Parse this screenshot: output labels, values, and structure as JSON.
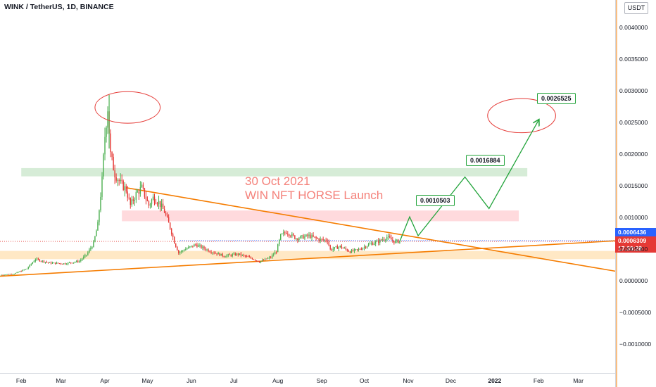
{
  "header": {
    "symbol_line": "WINK / TetherUS, 1D, BINANCE"
  },
  "currency_badge": "USDT",
  "annotation": {
    "line1": "30 Oct 2021",
    "line2": "WIN NFT HORSE Launch"
  },
  "targets": [
    "0.0010503",
    "0.0016884",
    "0.0026525"
  ],
  "price_labels": {
    "current_price": "0.0006436",
    "last_close": "0.0006309",
    "countdown": "17:30:28",
    "current_color": "#2962ff",
    "last_color": "#e53935"
  },
  "colors": {
    "up": "#26a69a",
    "down": "#ef5350",
    "up_bar": "#4caf50",
    "down_bar": "#e53935",
    "trendline": "#f57c00",
    "projection": "#21a33a",
    "resistance_zone": "#c8e6c9",
    "target_zone": "#ffcdd2",
    "support_zone": "#ffe0b2",
    "ellipse": "#e53935"
  },
  "chart_data": {
    "type": "candlestick",
    "title": "WINK / TetherUS, 1D, BINANCE",
    "x_ticks": [
      "Feb",
      "Mar",
      "Apr",
      "May",
      "Jun",
      "Jul",
      "Aug",
      "Sep",
      "Oct",
      "Nov",
      "Dec",
      "2022",
      "Feb",
      "Mar"
    ],
    "x_tick_dates": [
      "2021-02-01",
      "2021-03-01",
      "2021-04-01",
      "2021-05-01",
      "2021-06-01",
      "2021-07-01",
      "2021-08-01",
      "2021-09-01",
      "2021-10-01",
      "2021-11-01",
      "2021-12-01",
      "2022-01-01",
      "2022-02-01",
      "2022-03-01"
    ],
    "y_ticks": [
      "0.0040000",
      "0.0035000",
      "0.0030000",
      "0.0025000",
      "0.0020000",
      "0.0015000",
      "0.0010000",
      "0.0005000",
      "0.0000000",
      "−0.0005000",
      "−0.0010000"
    ],
    "y_tick_values": [
      0.004,
      0.0035,
      0.003,
      0.0025,
      0.002,
      0.0015,
      0.001,
      0.0005,
      0.0,
      -0.0005,
      -0.001
    ],
    "ylim": [
      -0.00145,
      0.00445
    ],
    "xlim": [
      "2021-01-17",
      "2022-03-27"
    ],
    "price_path": [
      [
        "2021-01-18",
        0.0001
      ],
      [
        "2021-01-28",
        0.00012
      ],
      [
        "2021-02-06",
        0.0002
      ],
      [
        "2021-02-12",
        0.00035
      ],
      [
        "2021-02-22",
        0.00029
      ],
      [
        "2021-03-05",
        0.00028
      ],
      [
        "2021-03-15",
        0.00032
      ],
      [
        "2021-03-20",
        0.00042
      ],
      [
        "2021-03-25",
        0.0006
      ],
      [
        "2021-03-28",
        0.0009
      ],
      [
        "2021-03-31",
        0.0016
      ],
      [
        "2021-04-02",
        0.0023
      ],
      [
        "2021-04-04",
        0.00275
      ],
      [
        "2021-04-06",
        0.002
      ],
      [
        "2021-04-09",
        0.0017
      ],
      [
        "2021-04-13",
        0.00155
      ],
      [
        "2021-04-17",
        0.00145
      ],
      [
        "2021-04-20",
        0.0012
      ],
      [
        "2021-04-24",
        0.00138
      ],
      [
        "2021-04-28",
        0.00148
      ],
      [
        "2021-05-03",
        0.0012
      ],
      [
        "2021-05-06",
        0.00132
      ],
      [
        "2021-05-10",
        0.00125
      ],
      [
        "2021-05-14",
        0.0011
      ],
      [
        "2021-05-18",
        0.00085
      ],
      [
        "2021-05-21",
        0.00062
      ],
      [
        "2021-05-24",
        0.00045
      ],
      [
        "2021-05-28",
        0.0005
      ],
      [
        "2021-06-05",
        0.00058
      ],
      [
        "2021-06-15",
        0.00048
      ],
      [
        "2021-06-25",
        0.0004
      ],
      [
        "2021-07-05",
        0.00043
      ],
      [
        "2021-07-15",
        0.00036
      ],
      [
        "2021-07-20",
        0.00031
      ],
      [
        "2021-07-28",
        0.00038
      ],
      [
        "2021-08-01",
        0.00048
      ],
      [
        "2021-08-04",
        0.00072
      ],
      [
        "2021-08-08",
        0.00078
      ],
      [
        "2021-08-15",
        0.00068
      ],
      [
        "2021-08-24",
        0.00072
      ],
      [
        "2021-08-31",
        0.00066
      ],
      [
        "2021-09-06",
        0.00065
      ],
      [
        "2021-09-08",
        0.0005
      ],
      [
        "2021-09-15",
        0.00055
      ],
      [
        "2021-09-22",
        0.00047
      ],
      [
        "2021-09-28",
        0.0005
      ],
      [
        "2021-10-05",
        0.00058
      ],
      [
        "2021-10-12",
        0.00063
      ],
      [
        "2021-10-18",
        0.0007
      ],
      [
        "2021-10-23",
        0.00063
      ],
      [
        "2021-10-26",
        0.000631
      ]
    ],
    "levels": {
      "current_price": 0.0006436,
      "last_close": 0.0006309,
      "resistance_zone": [
        0.00166,
        0.00179
      ],
      "target_zone": [
        0.00095,
        0.00112
      ],
      "support_zone": [
        0.00035,
        0.00048
      ]
    },
    "trendlines": [
      {
        "name": "descending",
        "from": [
          "2021-04-16",
          0.00148
        ],
        "to": [
          "2022-03-27",
          0.00016
        ]
      },
      {
        "name": "ascending",
        "from": [
          "2021-01-17",
          8e-05
        ],
        "to": [
          "2022-03-27",
          0.00064
        ]
      }
    ],
    "projection": [
      [
        "2021-10-26",
        0.00063
      ],
      [
        "2021-11-02",
        0.00102
      ],
      [
        "2021-11-08",
        0.00072
      ],
      [
        "2021-12-11",
        0.00165
      ],
      [
        "2021-12-28",
        0.00115
      ],
      [
        "2022-02-01",
        0.00255
      ]
    ],
    "ellipses": [
      {
        "center": [
          "2021-04-17",
          0.00275
        ],
        "rx_days": 23,
        "ry": 0.00025
      },
      {
        "center": [
          "2022-01-20",
          0.00262
        ],
        "rx_days": 24,
        "ry": 0.00027
      }
    ]
  }
}
